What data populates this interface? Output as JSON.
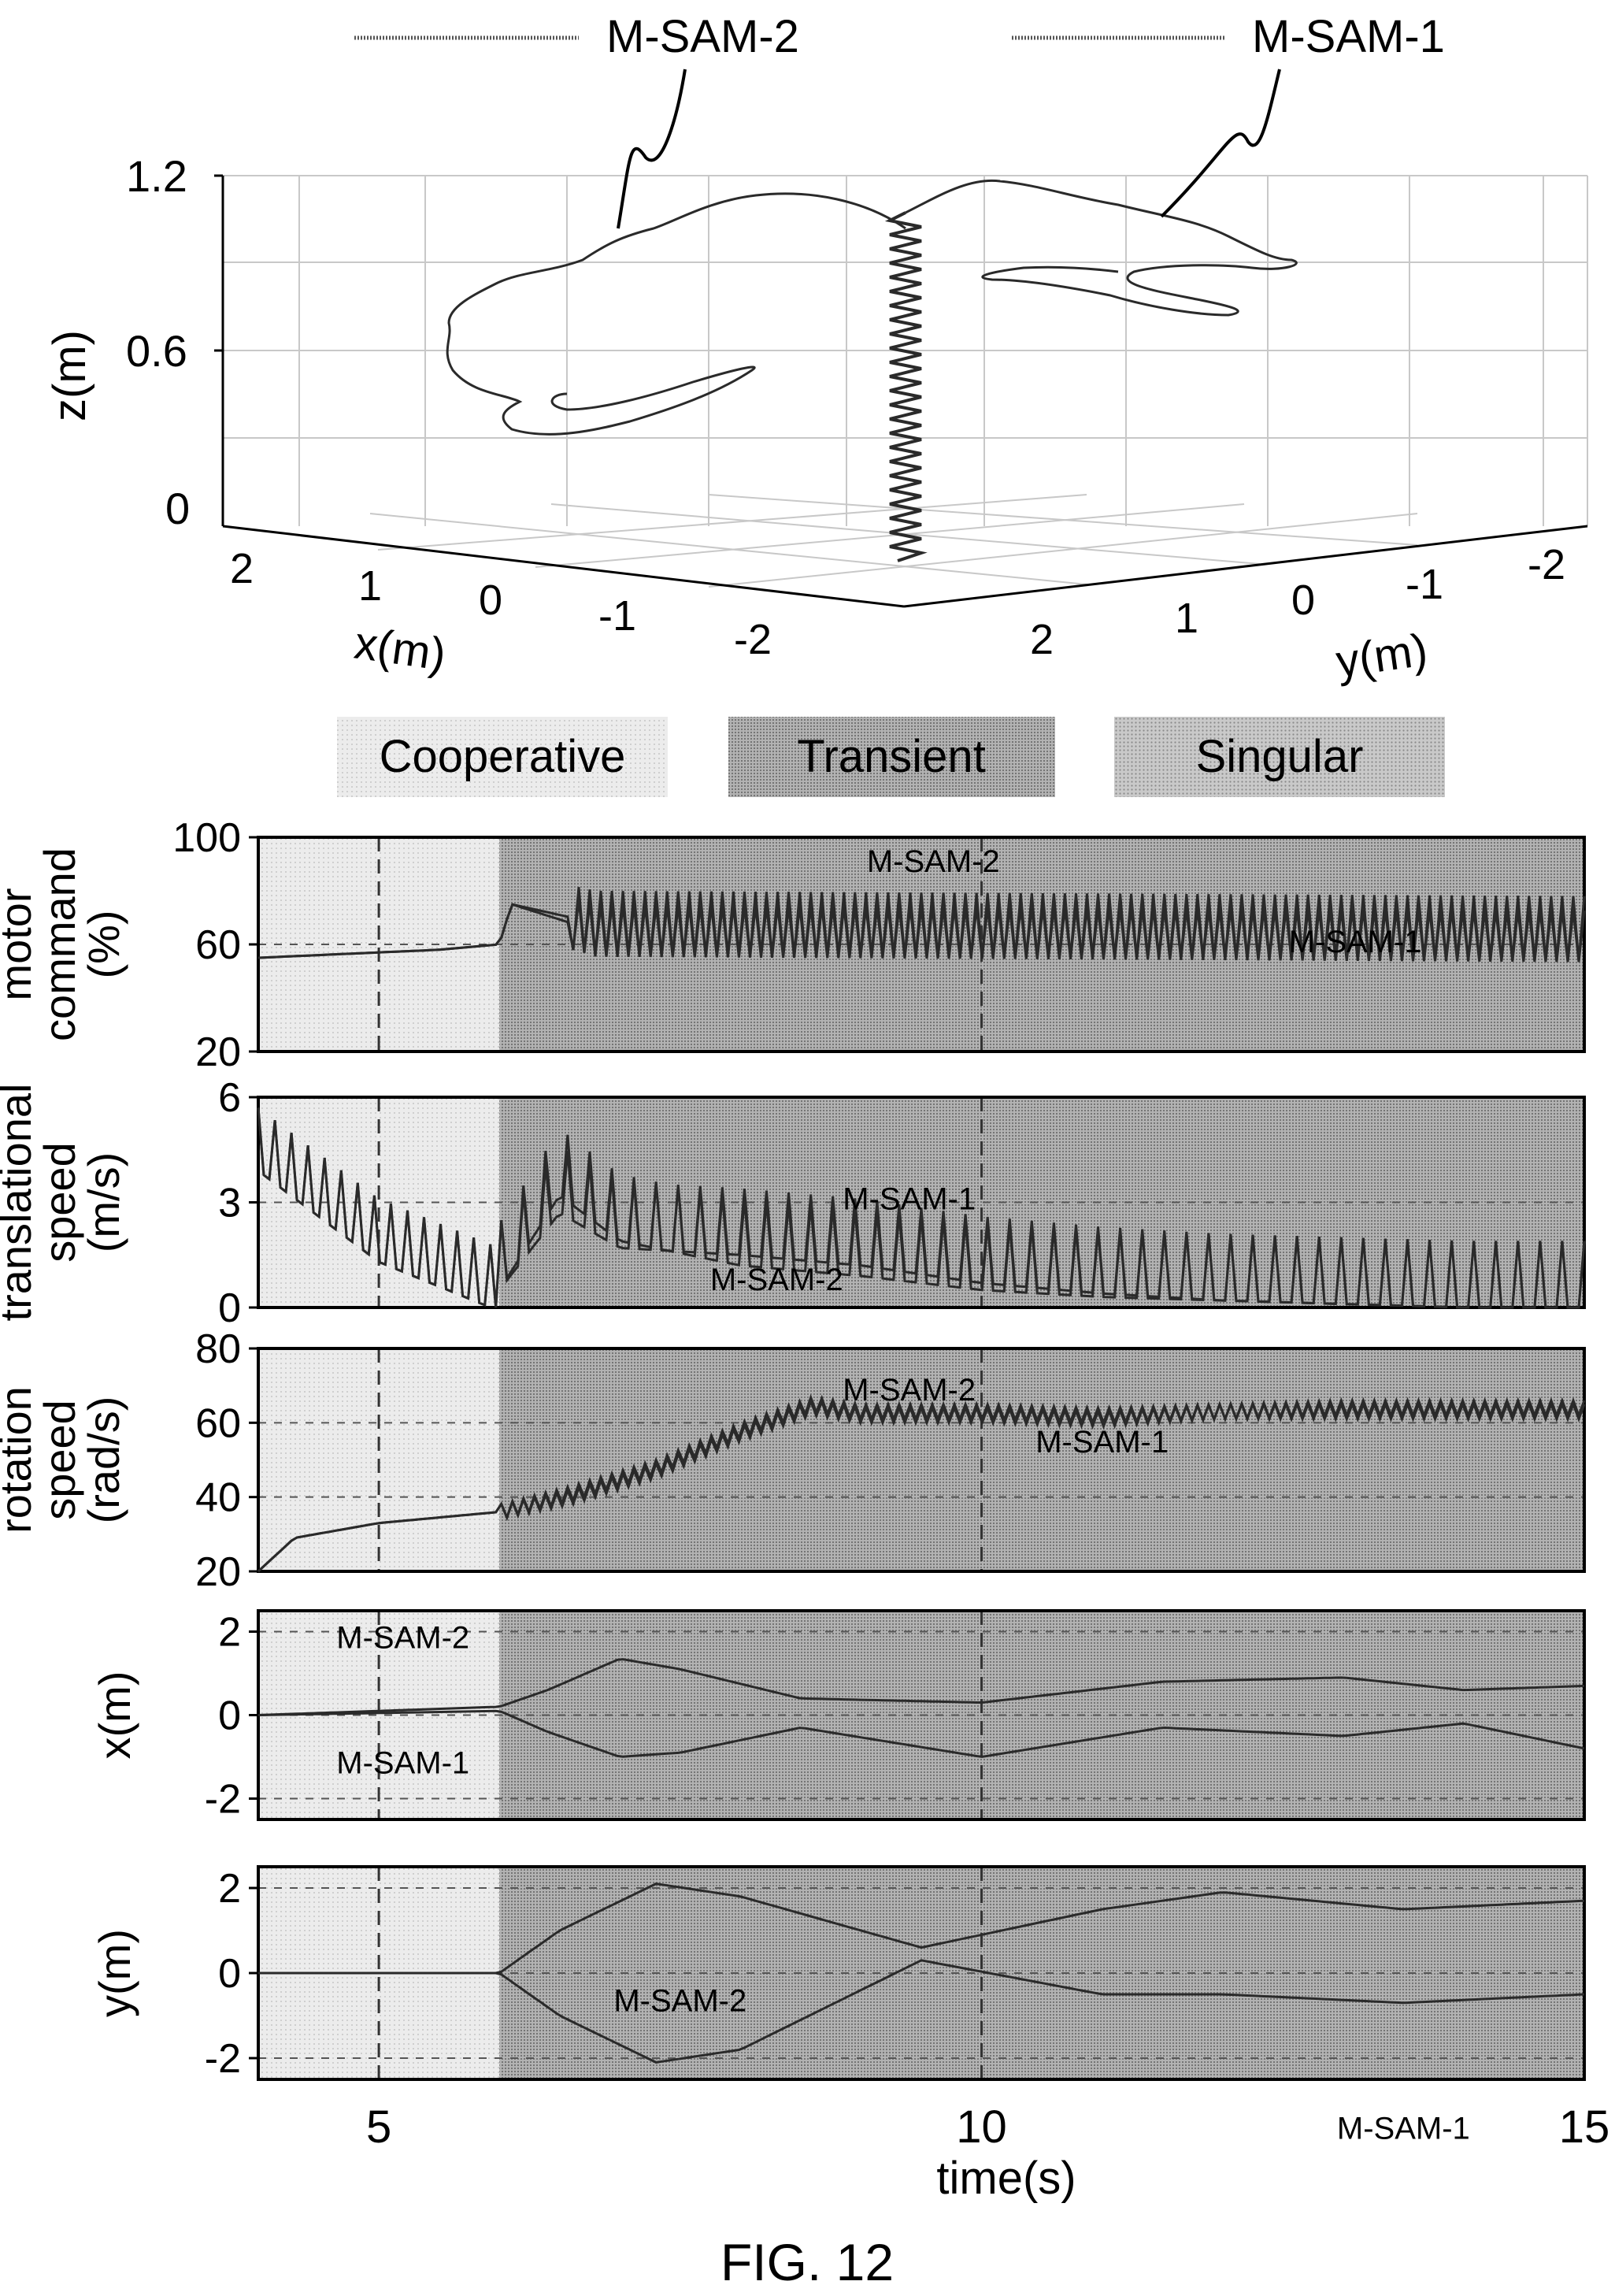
{
  "figure_label": "FIG. 12",
  "colors": {
    "line": "#222222",
    "grid": "#bdbdbd",
    "cooperative": "#e6e6e6",
    "transient": "#a9a9a9",
    "singular": "#c4c4c4",
    "axis": "#000000"
  },
  "legend_3d": {
    "series": [
      "M-SAM-2",
      "M-SAM-1"
    ]
  },
  "phase_legend": {
    "labels": [
      "Cooperative",
      "Transient",
      "Singular"
    ]
  },
  "chart_data": [
    {
      "type": "line3d",
      "title": "",
      "zlabel": "z(m)",
      "xlabel": "x(m)",
      "ylabel": "y(m)",
      "zticks": [
        "1.2",
        "0.6",
        "0"
      ],
      "xticks": [
        "2",
        "1",
        "0",
        "-1",
        "-2"
      ],
      "yticks": [
        "2",
        "1",
        "0",
        "-1",
        "-2"
      ],
      "zlim": [
        0,
        1.2
      ],
      "xlim": [
        -2,
        2
      ],
      "ylim": [
        -2,
        2
      ],
      "grid": true,
      "series": [
        {
          "name": "M-SAM-2",
          "annotation": "M-SAM-2"
        },
        {
          "name": "M-SAM-1",
          "annotation": "M-SAM-1"
        }
      ]
    },
    {
      "type": "line",
      "ylabel": [
        "motor",
        "command",
        "(%)"
      ],
      "ylim": [
        20,
        100
      ],
      "yticks": [
        "100",
        "60",
        "20"
      ],
      "ytick_values": [
        100,
        60,
        20
      ],
      "xlim": [
        4,
        15
      ],
      "grid": true,
      "annotations": [
        {
          "text": "M-SAM-2",
          "t": 9.6,
          "v": 87
        },
        {
          "text": "M-SAM-1",
          "t": 13.1,
          "v": 57
        }
      ],
      "series": [
        {
          "name": "M-SAM-1",
          "t": [
            4,
            5,
            5.5,
            6,
            6.1,
            6.8,
            15
          ],
          "values": [
            55,
            57,
            58,
            60,
            75,
            65,
            63
          ]
        },
        {
          "name": "M-SAM-2",
          "t": [
            4,
            5,
            5.5,
            6,
            6.1,
            6.8,
            15
          ],
          "values": [
            55,
            57,
            58,
            60,
            75,
            68,
            66
          ]
        }
      ]
    },
    {
      "type": "line",
      "ylabel": [
        "translational",
        "speed",
        "(m/s)"
      ],
      "ylim": [
        0,
        6
      ],
      "yticks": [
        "6",
        "3",
        "0"
      ],
      "ytick_values": [
        6,
        3,
        0
      ],
      "xlim": [
        4,
        15
      ],
      "grid": true,
      "annotations": [
        {
          "text": "M-SAM-1",
          "t": 9.4,
          "v": 2.8
        },
        {
          "text": "M-SAM-2",
          "t": 8.3,
          "v": 0.5
        }
      ],
      "series": [
        {
          "name": "M-SAM-1",
          "t": [
            4,
            4.5,
            5,
            5.5,
            6,
            6.5,
            7,
            8,
            9,
            10,
            11,
            12,
            13,
            14,
            15
          ],
          "values": [
            4.8,
            3.5,
            2.2,
            1.5,
            0.8,
            3,
            2,
            1.8,
            1.5,
            1,
            0.7,
            0.5,
            0.4,
            0.3,
            0.3
          ]
        },
        {
          "name": "M-SAM-2",
          "t": [
            4,
            4.5,
            5,
            5.5,
            6,
            6.5,
            7,
            8,
            9,
            10,
            11,
            12,
            13,
            14,
            15
          ],
          "values": [
            4.8,
            3.5,
            2.2,
            1.5,
            0.8,
            3.5,
            2.2,
            1.5,
            1.2,
            0.8,
            0.6,
            0.5,
            0.4,
            0.3,
            0.3
          ]
        }
      ]
    },
    {
      "type": "line",
      "ylabel": [
        "rotation",
        "speed",
        "(rad/s)"
      ],
      "ylim": [
        20,
        80
      ],
      "yticks": [
        "80",
        "60",
        "40",
        "20"
      ],
      "ytick_values": [
        80,
        60,
        40,
        20
      ],
      "xlim": [
        4,
        15
      ],
      "grid": true,
      "annotations": [
        {
          "text": "M-SAM-2",
          "t": 9.4,
          "v": 66
        },
        {
          "text": "M-SAM-1",
          "t": 11.0,
          "v": 52
        }
      ],
      "series": [
        {
          "name": "M-SAM-1",
          "t": [
            4,
            4.3,
            5,
            6,
            6.6,
            7.3,
            8,
            8.6,
            9,
            10,
            11,
            12,
            13,
            14,
            15
          ],
          "values": [
            20,
            29,
            33,
            36,
            40,
            47,
            57,
            64,
            62,
            62,
            61,
            63,
            63,
            63,
            63
          ]
        },
        {
          "name": "M-SAM-2",
          "t": [
            4,
            4.3,
            5,
            6,
            6.6,
            7.3,
            8,
            8.6,
            9,
            10,
            11,
            12,
            13,
            14,
            15
          ],
          "values": [
            20,
            29,
            33,
            36,
            41,
            48,
            58,
            65,
            63,
            63,
            62,
            63,
            64,
            64,
            64
          ]
        }
      ]
    },
    {
      "type": "line",
      "ylabel": [
        "x(m)"
      ],
      "ylim": [
        -2.5,
        2.5
      ],
      "yticks": [
        "2",
        "0",
        "-2"
      ],
      "ytick_values": [
        2,
        0,
        -2
      ],
      "xlim": [
        4,
        15
      ],
      "grid": true,
      "annotations": [
        {
          "text": "M-SAM-2",
          "t": 5.2,
          "v": 1.6
        },
        {
          "text": "M-SAM-1",
          "t": 5.2,
          "v": -1.4
        }
      ],
      "series": [
        {
          "name": "M-SAM-2",
          "t": [
            4,
            6,
            6.4,
            7,
            7.5,
            8.5,
            10,
            11.5,
            13,
            14,
            15
          ],
          "values": [
            0,
            0.2,
            0.6,
            1.35,
            1.1,
            0.4,
            0.3,
            0.8,
            0.9,
            0.6,
            0.7
          ]
        },
        {
          "name": "M-SAM-1",
          "t": [
            4,
            6,
            6.4,
            7,
            7.5,
            8.5,
            10,
            11.5,
            13,
            14,
            15
          ],
          "values": [
            0,
            0.1,
            -0.4,
            -1,
            -0.9,
            -0.3,
            -1,
            -0.3,
            -0.5,
            -0.2,
            -0.8
          ]
        }
      ]
    },
    {
      "type": "line",
      "ylabel": [
        "y(m)"
      ],
      "ylim": [
        -2.5,
        2.5
      ],
      "yticks": [
        "2",
        "0",
        "-2"
      ],
      "ytick_values": [
        2,
        0,
        -2
      ],
      "xlim": [
        4,
        15
      ],
      "xticks": [
        "5",
        "10",
        "15"
      ],
      "xtick_values": [
        5,
        10,
        15
      ],
      "xlabel": "time(s)",
      "grid": true,
      "annotations": [
        {
          "text": "M-SAM-2",
          "t": 7.5,
          "v": -0.9
        },
        {
          "text": "M-SAM-1",
          "t": 13.5,
          "v": -3.9
        }
      ],
      "series": [
        {
          "name": "M-SAM-2",
          "t": [
            4,
            6,
            6.5,
            7.3,
            8,
            9.5,
            11,
            12,
            13.5,
            15
          ],
          "values": [
            0,
            0,
            1,
            2.1,
            1.8,
            0.6,
            1.5,
            1.9,
            1.5,
            1.7
          ]
        },
        {
          "name": "M-SAM-1",
          "t": [
            4,
            6,
            6.5,
            7.3,
            8,
            9.5,
            11,
            12,
            13.5,
            15
          ],
          "values": [
            0,
            0,
            -1,
            -2.1,
            -1.8,
            0.3,
            -0.5,
            -0.5,
            -0.7,
            -0.5
          ]
        }
      ]
    }
  ],
  "phases": [
    {
      "label": "Cooperative",
      "t_start": 4,
      "t_end": 6
    },
    {
      "label": "Transient",
      "t_start": 6,
      "t_end": 15
    }
  ]
}
